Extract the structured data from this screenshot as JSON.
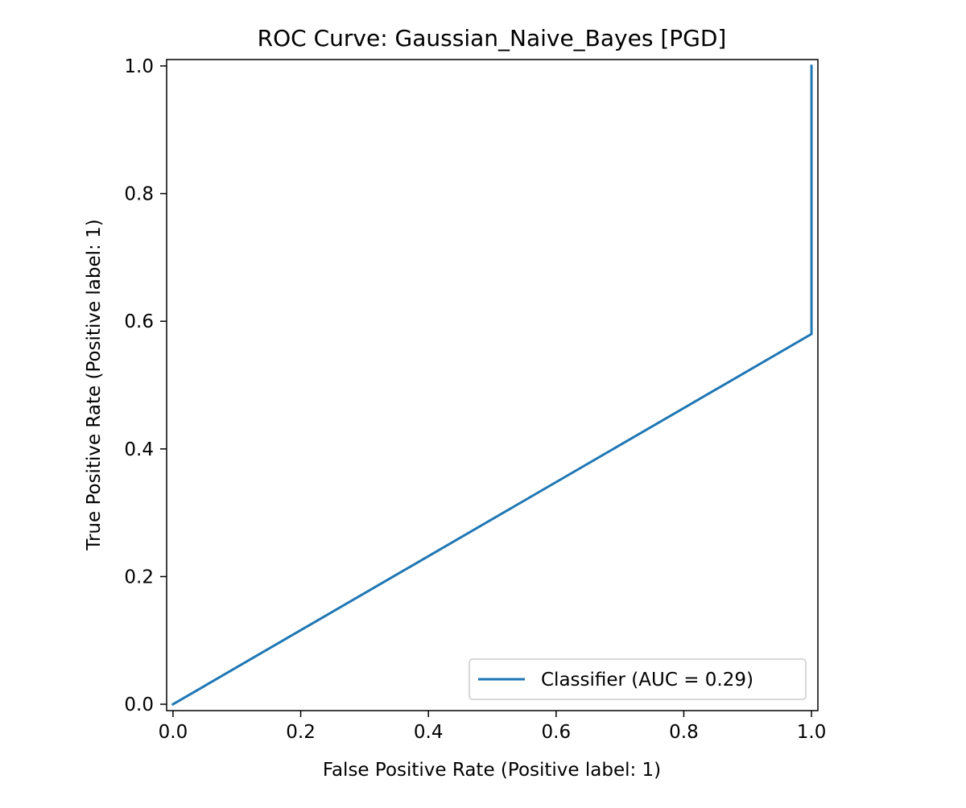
{
  "chart_data": {
    "type": "line",
    "title": "ROC Curve: Gaussian_Naive_Bayes [PGD]",
    "xlabel": "False Positive Rate (Positive label: 1)",
    "ylabel": "True Positive Rate (Positive label: 1)",
    "xlim": [
      -0.01,
      1.01
    ],
    "ylim": [
      -0.01,
      1.01
    ],
    "x_ticks": [
      "0.0",
      "0.2",
      "0.4",
      "0.6",
      "0.8",
      "1.0"
    ],
    "y_ticks": [
      "0.0",
      "0.2",
      "0.4",
      "0.6",
      "0.8",
      "1.0"
    ],
    "grid": false,
    "legend_position": "lower-right",
    "series": [
      {
        "name": "Classifier (AUC = 0.29)",
        "color": "#1f77b4",
        "x": [
          0.0,
          1.0,
          1.0
        ],
        "y": [
          0.0,
          0.58,
          1.0
        ]
      }
    ]
  }
}
